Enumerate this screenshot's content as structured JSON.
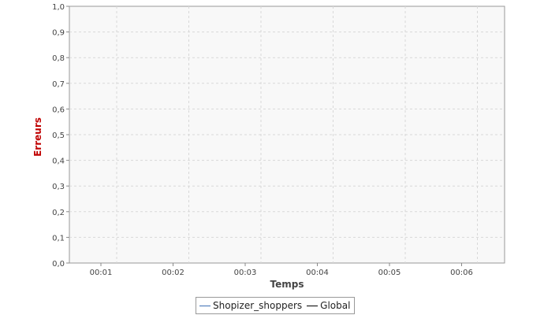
{
  "chart_data": {
    "type": "line",
    "xlabel": "Temps",
    "ylabel": "Erreurs",
    "x_ticks": [
      "00:01",
      "00:02",
      "00:03",
      "00:04",
      "00:05",
      "00:06"
    ],
    "y_ticks": [
      "0,0",
      "0,1",
      "0,2",
      "0,3",
      "0,4",
      "0,5",
      "0,6",
      "0,7",
      "0,8",
      "0,9",
      "1,0"
    ],
    "ylim": [
      0,
      1.0
    ],
    "grid": true,
    "legend_position": "bottom",
    "series": [
      {
        "name": "Shopizer_shoppers",
        "color": "#3c6eb4",
        "values": []
      },
      {
        "name": "Global",
        "color": "#000000",
        "values": []
      }
    ]
  }
}
